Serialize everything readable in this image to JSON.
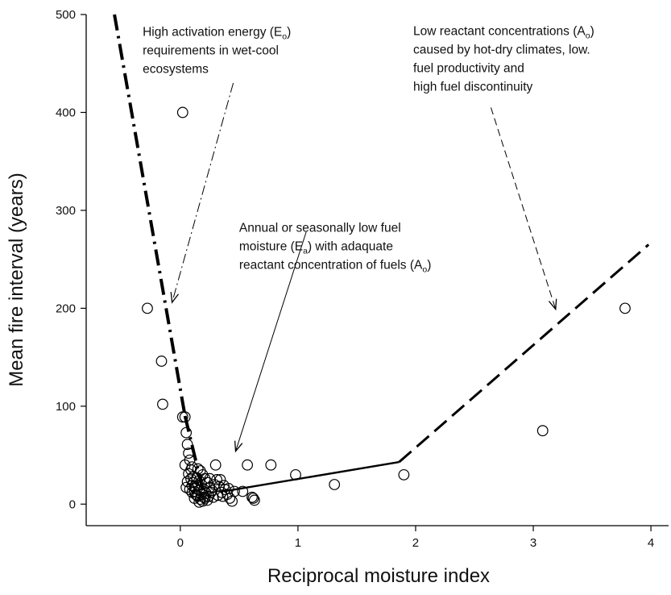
{
  "chart_data": {
    "type": "scatter",
    "xlabel": "Reciprocal moisture index",
    "ylabel": "Mean fire interval (years)",
    "xlim": [
      -0.8,
      4.15
    ],
    "ylim": [
      -22,
      500
    ],
    "xticks": [
      0,
      1,
      2,
      3,
      4
    ],
    "yticks": [
      0,
      100,
      200,
      300,
      400,
      500
    ],
    "grid": false,
    "points": [
      [
        0.02,
        400
      ],
      [
        -0.28,
        200
      ],
      [
        -0.16,
        146
      ],
      [
        -0.15,
        102
      ],
      [
        0.02,
        89
      ],
      [
        0.04,
        89
      ],
      [
        0.05,
        73
      ],
      [
        0.06,
        61
      ],
      [
        0.07,
        52
      ],
      [
        0.08,
        45
      ],
      [
        0.04,
        40
      ],
      [
        0.1,
        38
      ],
      [
        0.07,
        31
      ],
      [
        0.09,
        26
      ],
      [
        0.11,
        22
      ],
      [
        0.12,
        18
      ],
      [
        0.08,
        15
      ],
      [
        0.1,
        12
      ],
      [
        0.13,
        10
      ],
      [
        0.15,
        8
      ],
      [
        0.17,
        5
      ],
      [
        0.19,
        3
      ],
      [
        0.21,
        6
      ],
      [
        0.14,
        27
      ],
      [
        0.16,
        24
      ],
      [
        0.18,
        20
      ],
      [
        0.2,
        15
      ],
      [
        0.22,
        11
      ],
      [
        0.24,
        8
      ],
      [
        0.26,
        12
      ],
      [
        0.17,
        34
      ],
      [
        0.19,
        30
      ],
      [
        0.21,
        26
      ],
      [
        0.23,
        22
      ],
      [
        0.25,
        17
      ],
      [
        0.27,
        14
      ],
      [
        0.29,
        20
      ],
      [
        0.31,
        25
      ],
      [
        0.33,
        18
      ],
      [
        0.35,
        12
      ],
      [
        0.36,
        8
      ],
      [
        0.38,
        15
      ],
      [
        0.4,
        10
      ],
      [
        0.42,
        6
      ],
      [
        0.44,
        3
      ],
      [
        0.46,
        13
      ],
      [
        0.3,
        40
      ],
      [
        0.12,
        13
      ],
      [
        0.14,
        9
      ],
      [
        0.16,
        14
      ],
      [
        0.15,
        19
      ],
      [
        0.18,
        10
      ],
      [
        0.2,
        7
      ],
      [
        0.23,
        4
      ],
      [
        0.25,
        26
      ],
      [
        0.28,
        7
      ],
      [
        0.32,
        9
      ],
      [
        0.34,
        25
      ],
      [
        0.37,
        19
      ],
      [
        0.11,
        28
      ],
      [
        0.13,
        16
      ],
      [
        0.1,
        19
      ],
      [
        0.16,
        2
      ],
      [
        0.12,
        6
      ],
      [
        0.15,
        36
      ],
      [
        0.57,
        40
      ],
      [
        0.77,
        40
      ],
      [
        0.98,
        30
      ],
      [
        1.31,
        20
      ],
      [
        1.9,
        30
      ],
      [
        3.08,
        75
      ],
      [
        3.78,
        200
      ],
      [
        0.62,
        6
      ],
      [
        0.63,
        4
      ],
      [
        0.61,
        7
      ],
      [
        0.53,
        13
      ],
      [
        0.41,
        16
      ],
      [
        0.05,
        17
      ],
      [
        0.06,
        23
      ],
      [
        0.09,
        35
      ]
    ],
    "lines": [
      {
        "style": "dash-dot",
        "width": 4,
        "points": [
          [
            -0.56,
            500
          ],
          [
            0.04,
            90
          ]
        ]
      },
      {
        "style": "dash-dot",
        "width": 4,
        "points": [
          [
            0.04,
            90
          ],
          [
            0.19,
            15
          ]
        ]
      },
      {
        "style": "solid",
        "width": 2.4,
        "points": [
          [
            0.37,
            13
          ],
          [
            1.86,
            43
          ]
        ]
      },
      {
        "style": "dash",
        "width": 3,
        "points": [
          [
            1.86,
            43
          ],
          [
            3.98,
            265
          ]
        ]
      }
    ],
    "arrows": [
      {
        "style": "dash-dot",
        "from": [
          0.45,
          430
        ],
        "to": [
          -0.07,
          206
        ]
      },
      {
        "style": "solid",
        "from": [
          1.07,
          278
        ],
        "to": [
          0.47,
          54
        ]
      },
      {
        "style": "dash",
        "from": [
          2.64,
          405
        ],
        "to": [
          3.19,
          199
        ]
      }
    ],
    "annotations": [
      {
        "anchor": [
          -0.32,
          478
        ],
        "lines": [
          [
            {
              "t": "High activation energy (E"
            },
            {
              "t": "o",
              "sub": true
            },
            {
              "t": ")"
            }
          ],
          [
            {
              "t": "requirements in wet-cool"
            }
          ],
          [
            {
              "t": "ecosystems"
            }
          ]
        ]
      },
      {
        "anchor": [
          1.98,
          479
        ],
        "lines": [
          [
            {
              "t": "Low reactant concentrations (A"
            },
            {
              "t": "o",
              "sub": true
            },
            {
              "t": ")"
            }
          ],
          [
            {
              "t": "caused by hot-dry climates, low."
            }
          ],
          [
            {
              "t": "fuel productivity and"
            }
          ],
          [
            {
              "t": "high fuel discontinuity"
            }
          ]
        ]
      },
      {
        "anchor": [
          0.5,
          278
        ],
        "lines": [
          [
            {
              "t": "Annual or seasonally low fuel"
            }
          ],
          [
            {
              "t": "moisture (E"
            },
            {
              "t": "a",
              "sub": true
            },
            {
              "t": ") with adaquate"
            }
          ],
          [
            {
              "t": "reactant concentration of fuels (A"
            },
            {
              "t": "o",
              "sub": true
            },
            {
              "t": ")"
            }
          ]
        ]
      }
    ]
  }
}
